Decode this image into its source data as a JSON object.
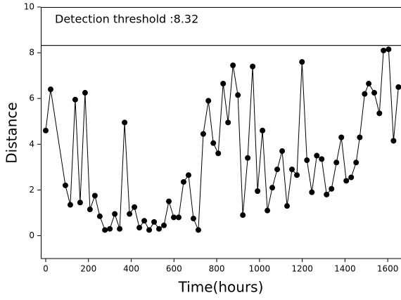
{
  "chart_data": {
    "type": "line",
    "annotation": "Detection threshold :8.32",
    "threshold": 8.32,
    "xlabel": "Time(hours)",
    "ylabel": "Distance",
    "xlim": [
      -23,
      1662
    ],
    "ylim": [
      -1,
      10
    ],
    "xticks": [
      0,
      200,
      400,
      600,
      800,
      1000,
      1200,
      1400,
      1600
    ],
    "yticks": [
      0,
      2,
      4,
      6,
      8,
      10
    ],
    "color": "#000000",
    "x": [
      0,
      23,
      92,
      115,
      138,
      161,
      184,
      207,
      230,
      253,
      277,
      300,
      323,
      346,
      369,
      392,
      415,
      438,
      461,
      484,
      507,
      530,
      553,
      576,
      599,
      622,
      645,
      668,
      691,
      714,
      737,
      761,
      784,
      807,
      830,
      853,
      876,
      899,
      922,
      945,
      968,
      991,
      1014,
      1037,
      1060,
      1083,
      1106,
      1129,
      1152,
      1175,
      1199,
      1222,
      1245,
      1268,
      1291,
      1314,
      1337,
      1360,
      1383,
      1406,
      1429,
      1452,
      1469,
      1492,
      1511,
      1537,
      1561,
      1580,
      1604,
      1627,
      1650
    ],
    "values": [
      4.6,
      6.4,
      2.2,
      1.35,
      5.95,
      1.45,
      6.25,
      1.15,
      1.75,
      0.85,
      0.25,
      0.3,
      0.95,
      0.3,
      4.95,
      0.95,
      1.25,
      0.35,
      0.65,
      0.25,
      0.6,
      0.3,
      0.45,
      1.5,
      0.8,
      0.8,
      2.35,
      2.65,
      0.75,
      0.25,
      4.45,
      5.9,
      4.05,
      3.6,
      6.65,
      4.95,
      7.45,
      6.15,
      0.9,
      3.4,
      7.4,
      1.95,
      4.6,
      1.1,
      2.1,
      2.9,
      3.7,
      1.3,
      2.9,
      2.65,
      7.6,
      3.3,
      1.9,
      3.5,
      3.35,
      1.8,
      2.05,
      3.2,
      4.3,
      2.4,
      2.55,
      3.2,
      4.3,
      6.2,
      6.65,
      6.25,
      5.35,
      8.1,
      8.15,
      4.15,
      6.5
    ]
  }
}
